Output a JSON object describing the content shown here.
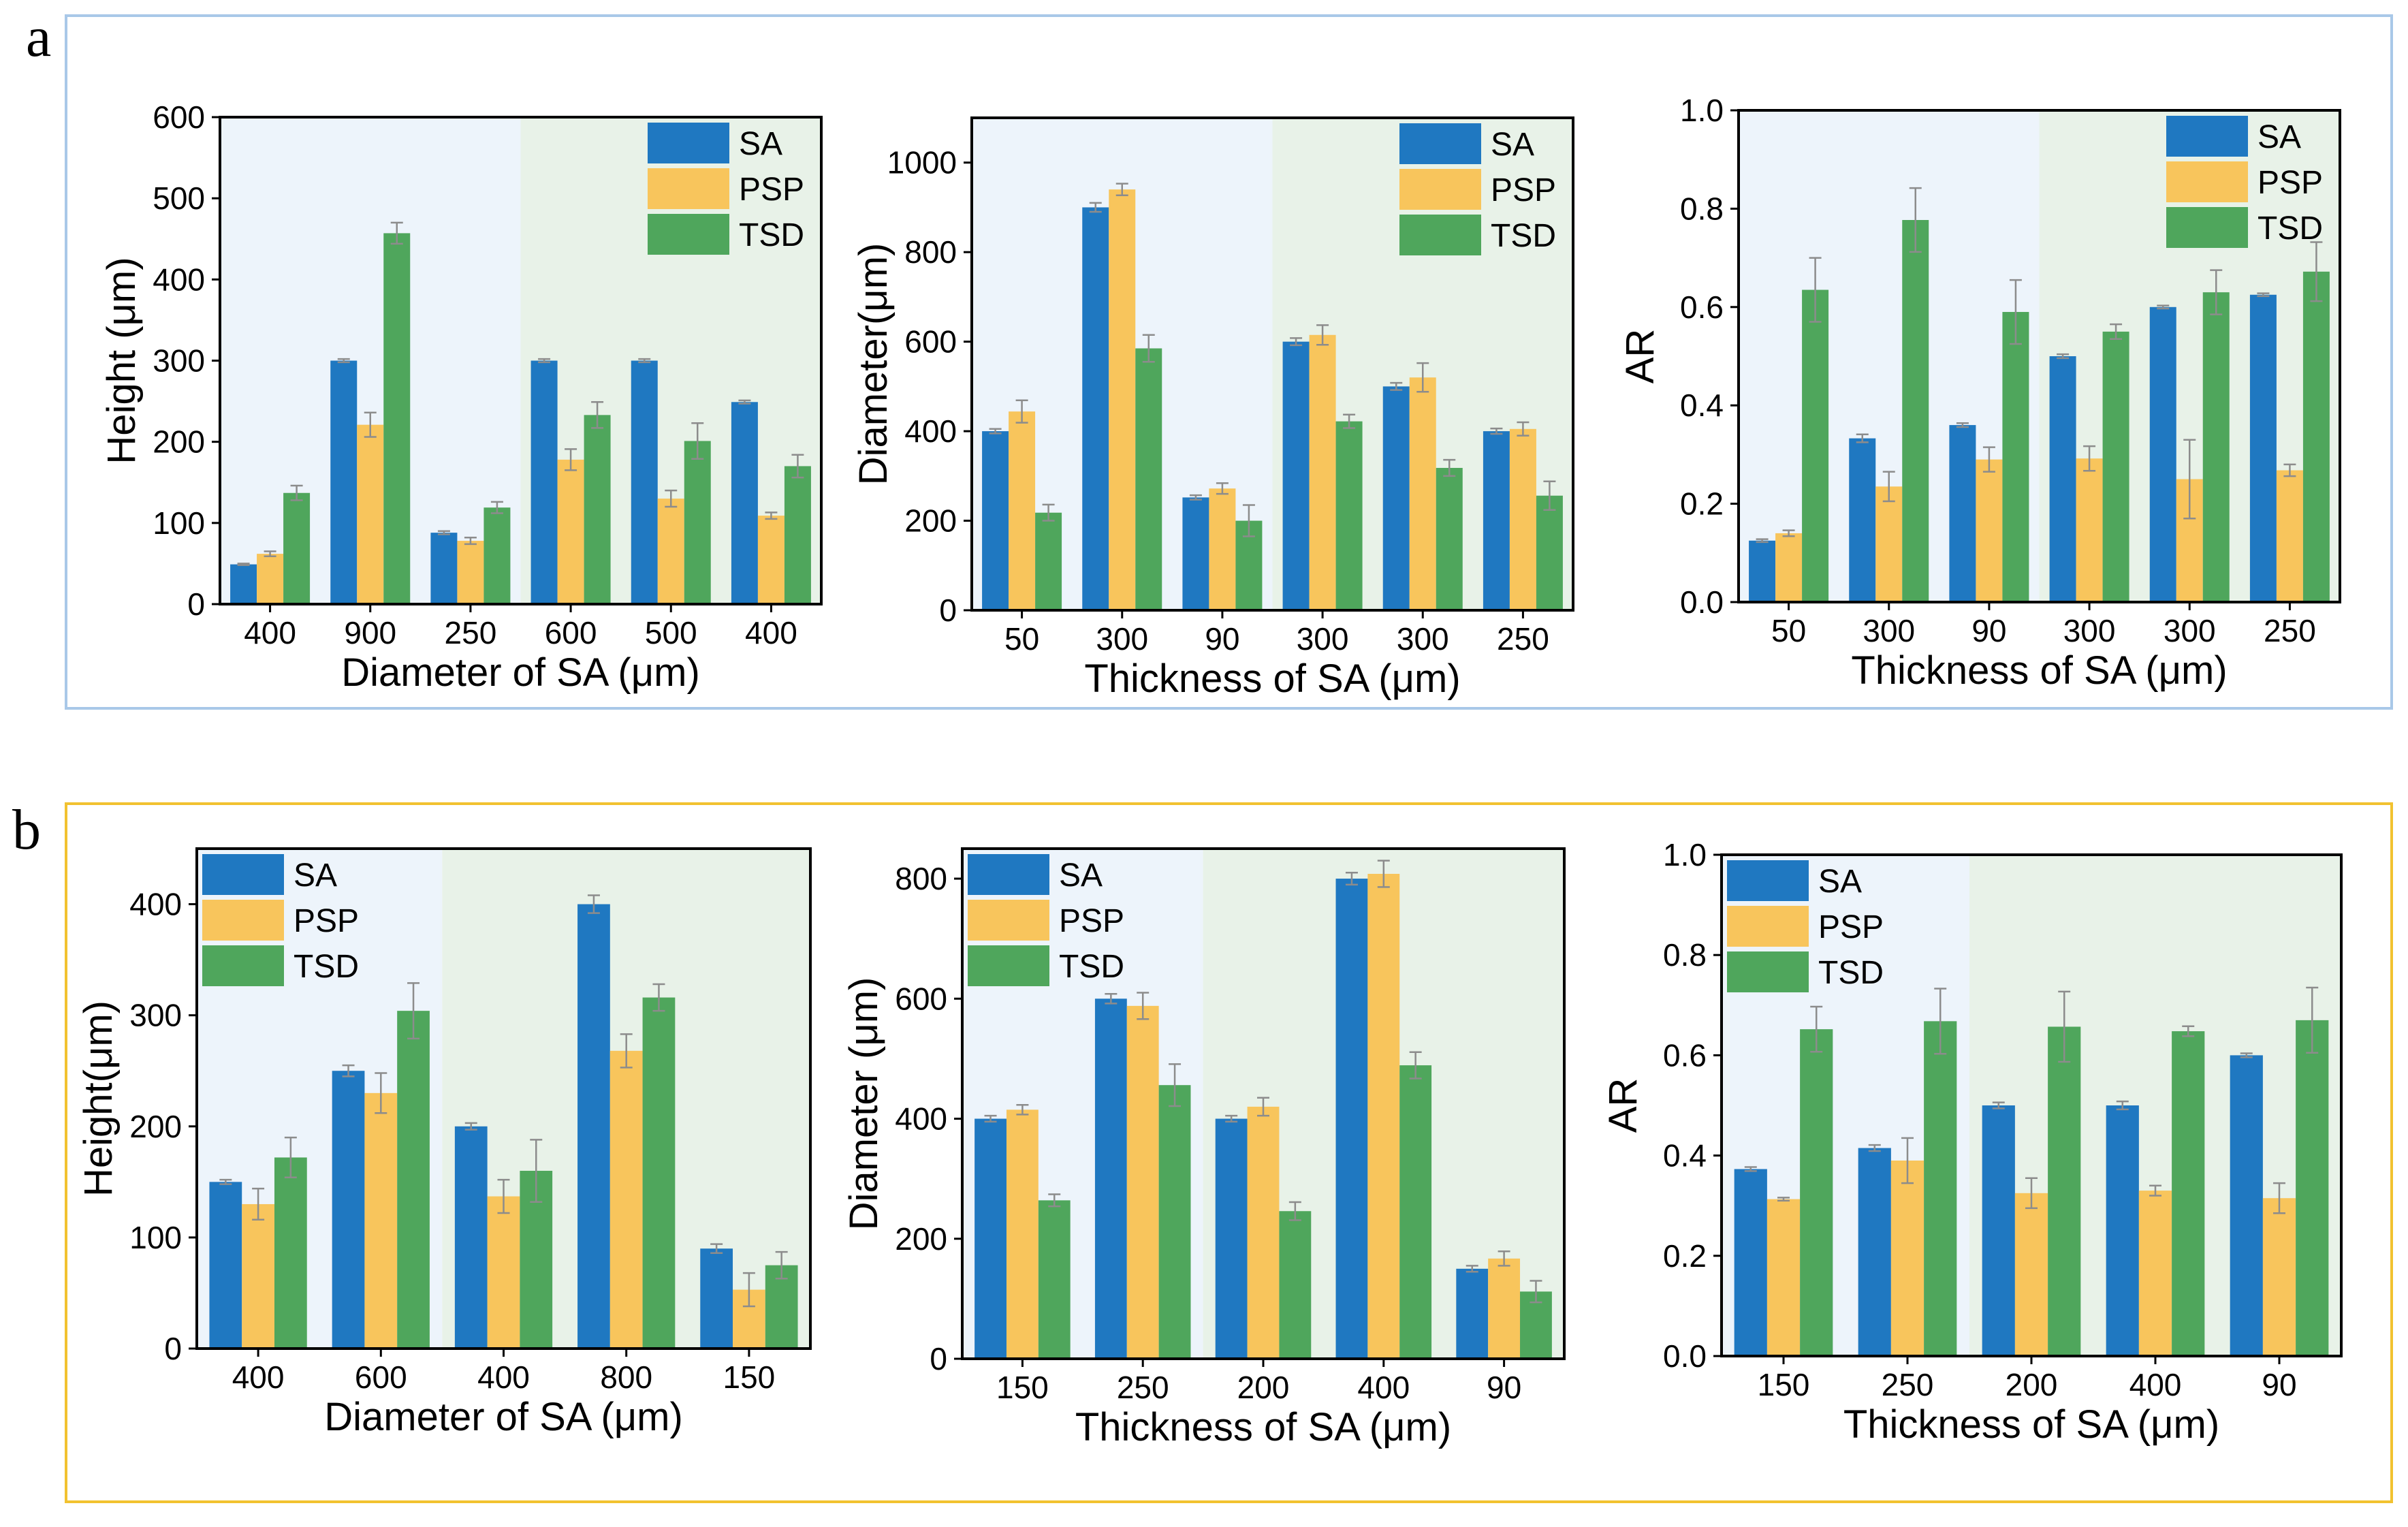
{
  "panels": [
    {
      "label": "a",
      "border_color": "#a9c8e8"
    },
    {
      "label": "b",
      "border_color": "#f2c230"
    }
  ],
  "colors": {
    "SA": "#1f78c1",
    "PSP": "#f8c55c",
    "TSD": "#4fa65c",
    "bg_left": "#edf4fb",
    "bg_right": "#e8f2e8",
    "error": "#8c8c8c"
  },
  "chart_data": [
    {
      "type": "bar",
      "panel": "a",
      "xlabel": "Diameter of SA (μm)",
      "ylabel": "Height (μm)",
      "ylim": [
        0,
        600
      ],
      "yticks": [
        0,
        100,
        200,
        300,
        400,
        500,
        600
      ],
      "ytick_labels": [
        "0",
        "100",
        "200",
        "300",
        "400",
        "500",
        "600"
      ],
      "split_after": 3,
      "legend_position": "top-right",
      "categories": [
        "400",
        "900",
        "250",
        "600",
        "500",
        "400"
      ],
      "series": [
        {
          "name": "SA",
          "values": [
            49,
            300,
            88,
            300,
            300,
            249
          ],
          "errors": [
            1,
            2,
            2,
            2,
            2,
            2
          ]
        },
        {
          "name": "PSP",
          "values": [
            62,
            221,
            78,
            178,
            130,
            109
          ],
          "errors": [
            3,
            15,
            4,
            13,
            10,
            4
          ]
        },
        {
          "name": "TSD",
          "values": [
            137,
            457,
            119,
            233,
            201,
            170
          ],
          "errors": [
            9,
            13,
            7,
            16,
            22,
            14
          ]
        }
      ]
    },
    {
      "type": "bar",
      "panel": "a",
      "xlabel": "Thickness of SA (μm)",
      "ylabel": "Diameter(μm)",
      "ylim": [
        0,
        1100
      ],
      "yticks": [
        0,
        200,
        400,
        600,
        800,
        1000
      ],
      "ytick_labels": [
        "0",
        "200",
        "400",
        "600",
        "800",
        "1000"
      ],
      "split_after": 3,
      "legend_position": "top-right",
      "categories": [
        "50",
        "300",
        "90",
        "300",
        "300",
        "250"
      ],
      "series": [
        {
          "name": "SA",
          "values": [
            400,
            900,
            252,
            600,
            500,
            400
          ],
          "errors": [
            5,
            10,
            5,
            8,
            8,
            6
          ]
        },
        {
          "name": "PSP",
          "values": [
            444,
            940,
            272,
            615,
            520,
            405
          ],
          "errors": [
            25,
            13,
            12,
            22,
            32,
            15
          ]
        },
        {
          "name": "TSD",
          "values": [
            218,
            585,
            200,
            422,
            318,
            256
          ],
          "errors": [
            18,
            30,
            35,
            15,
            18,
            32
          ]
        }
      ]
    },
    {
      "type": "bar",
      "panel": "a",
      "xlabel": "Thickness of SA (μm)",
      "ylabel": "AR",
      "ylim": [
        0,
        1.0
      ],
      "yticks": [
        0,
        0.2,
        0.4,
        0.6,
        0.8,
        1.0
      ],
      "ytick_labels": [
        "0.0",
        "0.2",
        "0.4",
        "0.6",
        "0.8",
        "1.0"
      ],
      "split_after": 3,
      "legend_position": "top-right",
      "categories": [
        "50",
        "300",
        "90",
        "300",
        "300",
        "250"
      ],
      "series": [
        {
          "name": "SA",
          "values": [
            0.125,
            0.333,
            0.36,
            0.5,
            0.6,
            0.625
          ],
          "errors": [
            0.003,
            0.008,
            0.004,
            0.004,
            0.003,
            0.003
          ]
        },
        {
          "name": "PSP",
          "values": [
            0.14,
            0.235,
            0.29,
            0.292,
            0.25,
            0.268
          ],
          "errors": [
            0.006,
            0.03,
            0.025,
            0.025,
            0.08,
            0.012
          ]
        },
        {
          "name": "TSD",
          "values": [
            0.635,
            0.777,
            0.59,
            0.55,
            0.63,
            0.672
          ],
          "errors": [
            0.065,
            0.065,
            0.065,
            0.015,
            0.045,
            0.06
          ]
        }
      ]
    },
    {
      "type": "bar",
      "panel": "b",
      "xlabel": "Diameter of SA (μm)",
      "ylabel": "Height(μm)",
      "ylim": [
        0,
        450
      ],
      "yticks": [
        0,
        100,
        200,
        300,
        400
      ],
      "ytick_labels": [
        "0",
        "100",
        "200",
        "300",
        "400"
      ],
      "split_after": 2,
      "legend_position": "top-left",
      "categories": [
        "400",
        "600",
        "400",
        "800",
        "150"
      ],
      "series": [
        {
          "name": "SA",
          "values": [
            150,
            250,
            200,
            400,
            90
          ],
          "errors": [
            2,
            5,
            3,
            8,
            4
          ]
        },
        {
          "name": "PSP",
          "values": [
            130,
            230,
            137,
            268,
            53
          ],
          "errors": [
            14,
            18,
            15,
            15,
            15
          ]
        },
        {
          "name": "TSD",
          "values": [
            172,
            304,
            160,
            316,
            75
          ],
          "errors": [
            18,
            25,
            28,
            12,
            12
          ]
        }
      ]
    },
    {
      "type": "bar",
      "panel": "b",
      "xlabel": "Thickness of SA (μm)",
      "ylabel": "Diameter (μm)",
      "ylim": [
        0,
        850
      ],
      "yticks": [
        0,
        200,
        400,
        600,
        800
      ],
      "ytick_labels": [
        "0",
        "200",
        "400",
        "600",
        "800"
      ],
      "split_after": 2,
      "legend_position": "top-left",
      "categories": [
        "150",
        "250",
        "200",
        "400",
        "90"
      ],
      "series": [
        {
          "name": "SA",
          "values": [
            400,
            600,
            400,
            800,
            150
          ],
          "errors": [
            5,
            8,
            5,
            10,
            5
          ]
        },
        {
          "name": "PSP",
          "values": [
            415,
            588,
            420,
            808,
            167
          ],
          "errors": [
            8,
            22,
            15,
            22,
            12
          ]
        },
        {
          "name": "TSD",
          "values": [
            264,
            456,
            246,
            489,
            112
          ],
          "errors": [
            10,
            35,
            15,
            22,
            18
          ]
        }
      ]
    },
    {
      "type": "bar",
      "panel": "b",
      "xlabel": "Thickness of SA (μm)",
      "ylabel": "AR",
      "ylim": [
        0,
        1.0
      ],
      "yticks": [
        0,
        0.2,
        0.4,
        0.6,
        0.8,
        1.0
      ],
      "ytick_labels": [
        "0.0",
        "0.2",
        "0.4",
        "0.6",
        "0.8",
        "1.0"
      ],
      "split_after": 2,
      "legend_position": "top-left",
      "categories": [
        "150",
        "250",
        "200",
        "400",
        "90"
      ],
      "series": [
        {
          "name": "SA",
          "values": [
            0.373,
            0.415,
            0.5,
            0.5,
            0.6
          ],
          "errors": [
            0.004,
            0.006,
            0.006,
            0.008,
            0.004
          ]
        },
        {
          "name": "PSP",
          "values": [
            0.313,
            0.39,
            0.325,
            0.33,
            0.315
          ],
          "errors": [
            0.003,
            0.045,
            0.03,
            0.01,
            0.03
          ]
        },
        {
          "name": "TSD",
          "values": [
            0.652,
            0.668,
            0.657,
            0.648,
            0.67
          ],
          "errors": [
            0.045,
            0.065,
            0.07,
            0.01,
            0.065
          ]
        }
      ]
    }
  ]
}
